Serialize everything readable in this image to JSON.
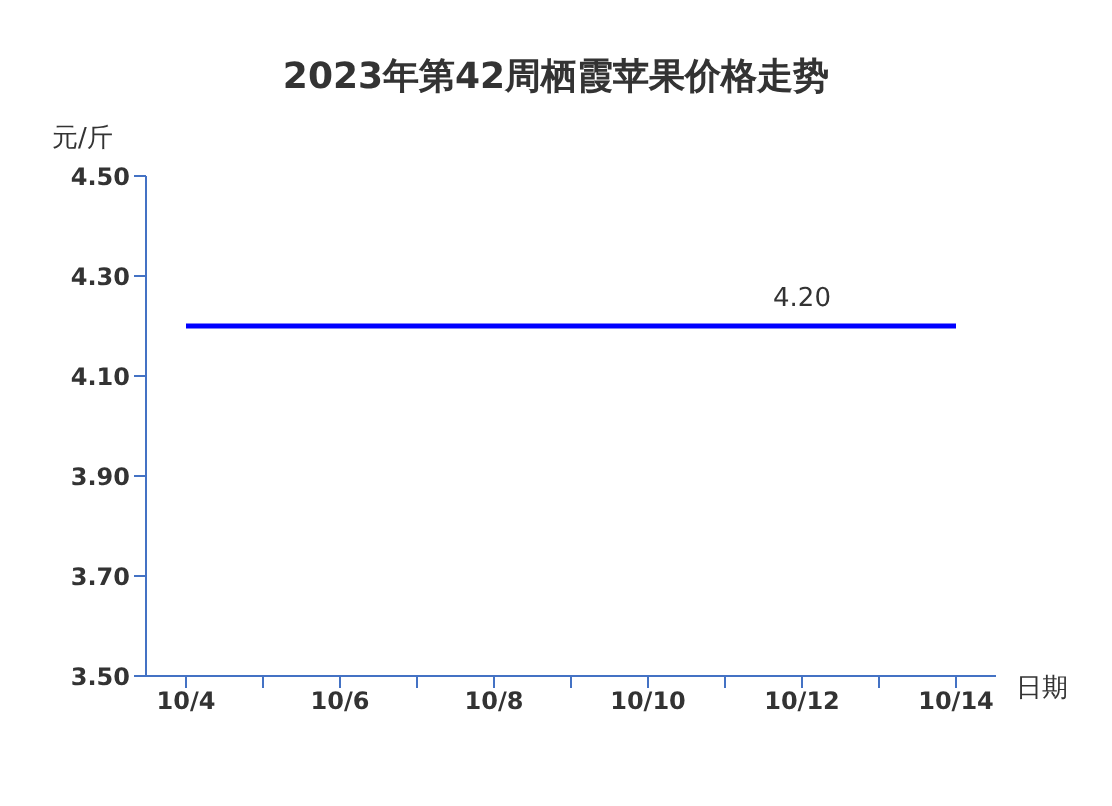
{
  "chart_data": {
    "type": "line",
    "title": "2023年第42周栖霞苹果价格走势",
    "xlabel": "日期",
    "ylabel": "元/斤",
    "categories": [
      "10/4",
      null,
      "10/6",
      null,
      "10/8",
      null,
      "10/10",
      null,
      "10/12",
      null,
      "10/14"
    ],
    "series": [
      {
        "color": "#0000ff",
        "values": [
          4.2,
          4.2,
          4.2,
          4.2,
          4.2,
          4.2,
          4.2,
          4.2,
          4.2,
          4.2,
          4.2
        ],
        "value_labels": [
          null,
          null,
          null,
          null,
          null,
          null,
          null,
          null,
          "4.20",
          null,
          null
        ]
      }
    ],
    "ylim": [
      3.5,
      4.5
    ],
    "yticks": [
      {
        "value": 3.5,
        "label": "3.50"
      },
      {
        "value": 3.7,
        "label": "3.70"
      },
      {
        "value": 3.9,
        "label": "3.90"
      },
      {
        "value": 4.1,
        "label": "4.10"
      },
      {
        "value": 4.3,
        "label": "4.30"
      },
      {
        "value": 4.5,
        "label": "4.50"
      }
    ],
    "grid": false,
    "marker": "none",
    "line_style": "solid"
  }
}
